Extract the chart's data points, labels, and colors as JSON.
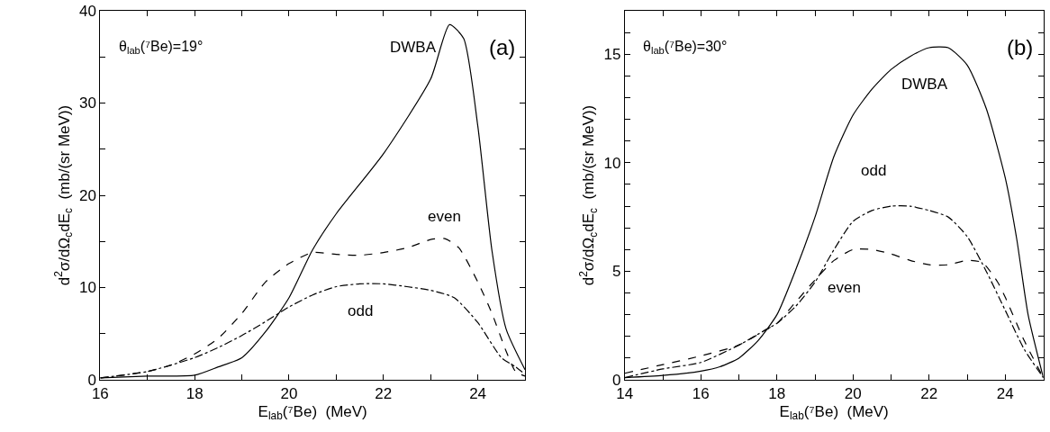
{
  "chart_data": [
    {
      "type": "line",
      "annotations": [
        "θ$_{lab}$(⁷Be)=19°",
        "(a)"
      ],
      "xlabel": "E$_{lab}$(⁷Be)  (MeV)",
      "ylabel": "d$^{2}$σ/dΩ$_{c}$dE$_{c}$  (mb/(sr MeV))",
      "xlim": [
        16,
        25
      ],
      "ylim": [
        0,
        40
      ],
      "xticks": [
        16,
        {
          "value": 17,
          "label": null
        },
        18,
        {
          "value": 19,
          "label": null
        },
        20,
        {
          "value": 21,
          "label": null
        },
        22,
        {
          "value": 23,
          "label": null
        },
        24
      ],
      "yticks": [
        0,
        {
          "value": 5,
          "label": null
        },
        10,
        {
          "value": 15,
          "label": null
        },
        20,
        {
          "value": 25,
          "label": null
        },
        30,
        {
          "value": 35,
          "label": null
        },
        40
      ],
      "grid": false,
      "legend": false,
      "marker": "none",
      "series": [
        {
          "name": "DWBA",
          "color": "#000000",
          "line_style": "solid",
          "x": [
            16,
            17,
            18,
            18.5,
            19,
            19.5,
            20,
            20.5,
            21,
            22,
            23,
            23.4,
            23.7,
            24,
            24.3,
            24.6,
            25
          ],
          "values": [
            0.2,
            0.4,
            0.5,
            1.4,
            2.4,
            5.2,
            8.9,
            14.1,
            18,
            24.5,
            32.6,
            38.5,
            37,
            27.5,
            14,
            5.5,
            1.1
          ]
        },
        {
          "name": "even",
          "color": "#000000",
          "line_style": "dashed",
          "x": [
            16,
            17,
            17.5,
            18,
            18.5,
            19,
            19.5,
            20,
            20.5,
            21,
            21.5,
            22,
            22.5,
            23,
            23.3,
            23.6,
            24,
            24.3,
            24.6,
            24.8,
            25
          ],
          "values": [
            0.2,
            0.9,
            1.6,
            2.8,
            4.5,
            7.2,
            10.6,
            12.6,
            13.8,
            13.6,
            13.5,
            13.8,
            14.3,
            15.2,
            15.3,
            14.3,
            10.6,
            7.2,
            3.1,
            0.9,
            0.4
          ]
        },
        {
          "name": "odd",
          "color": "#000000",
          "line_style": "dashdot",
          "x": [
            16,
            17,
            18,
            18.5,
            19,
            19.5,
            20,
            20.5,
            21,
            21.5,
            22,
            22.5,
            23,
            23.5,
            24,
            24.5,
            24.8,
            25
          ],
          "values": [
            0.2,
            0.9,
            2.4,
            3.5,
            4.8,
            6.3,
            7.9,
            9.2,
            10.1,
            10.4,
            10.4,
            10.1,
            9.7,
            8.9,
            6.2,
            2.4,
            1.4,
            0.6
          ]
        }
      ]
    },
    {
      "type": "line",
      "annotations": [
        "θ$_{lab}$(⁷Be)=30°",
        "(b)"
      ],
      "xlabel": "E$_{lab}$(⁷Be)  (MeV)",
      "ylabel": "d$^{2}$σ/dΩ$_{c}$dE$_{c}$  (mb/(sr MeV))",
      "xlim": [
        14,
        25
      ],
      "ylim": [
        0,
        17
      ],
      "xticks": [
        14,
        {
          "value": 15,
          "label": null
        },
        16,
        {
          "value": 17,
          "label": null
        },
        18,
        {
          "value": 19,
          "label": null
        },
        20,
        {
          "value": 21,
          "label": null
        },
        22,
        {
          "value": 23,
          "label": null
        },
        24
      ],
      "yticks": [
        0,
        {
          "value": 1,
          "label": null
        },
        {
          "value": 2,
          "label": null
        },
        {
          "value": 3,
          "label": null
        },
        {
          "value": 4,
          "label": null
        },
        5,
        {
          "value": 6,
          "label": null
        },
        {
          "value": 7,
          "label": null
        },
        {
          "value": 8,
          "label": null
        },
        {
          "value": 9,
          "label": null
        },
        10,
        {
          "value": 11,
          "label": null
        },
        {
          "value": 12,
          "label": null
        },
        {
          "value": 13,
          "label": null
        },
        {
          "value": 14,
          "label": null
        },
        15,
        {
          "value": 16,
          "label": null
        }
      ],
      "grid": false,
      "legend": false,
      "marker": "none",
      "series": [
        {
          "name": "DWBA",
          "color": "#000000",
          "line_style": "solid",
          "x": [
            14,
            15,
            16,
            16.5,
            17,
            17.5,
            18,
            18.5,
            19,
            19.5,
            20,
            20.5,
            21,
            21.5,
            22,
            22.5,
            23,
            23.5,
            24,
            24.3,
            24.6,
            25
          ],
          "values": [
            0.1,
            0.2,
            0.4,
            0.6,
            1.0,
            1.8,
            3.0,
            5.1,
            7.5,
            10.3,
            12.2,
            13.4,
            14.3,
            14.9,
            15.3,
            15.3,
            14.5,
            12.5,
            9.3,
            6.5,
            3.0,
            0.1
          ]
        },
        {
          "name": "odd",
          "color": "#000000",
          "line_style": "dashdot",
          "x": [
            14,
            15,
            16,
            17,
            17.7,
            18,
            18.5,
            19,
            19.5,
            20,
            20.5,
            21,
            21.5,
            22,
            22.5,
            23,
            23.5,
            24,
            24.5,
            25
          ],
          "values": [
            0.1,
            0.5,
            0.8,
            1.6,
            2.3,
            2.6,
            3.4,
            4.5,
            6.0,
            7.3,
            7.8,
            8.0,
            8.0,
            7.8,
            7.5,
            6.6,
            5.0,
            3.2,
            1.4,
            0.1
          ]
        },
        {
          "name": "even",
          "color": "#000000",
          "line_style": "dashed",
          "x": [
            14,
            15,
            16,
            17,
            17.7,
            18,
            18.5,
            19,
            19.5,
            20,
            20.5,
            21,
            21.5,
            22,
            22.5,
            23,
            23.4,
            23.8,
            24,
            24.5,
            25
          ],
          "values": [
            0.3,
            0.7,
            1.1,
            1.6,
            2.3,
            2.6,
            3.6,
            4.6,
            5.5,
            6.0,
            6.0,
            5.8,
            5.5,
            5.3,
            5.3,
            5.5,
            5.4,
            4.5,
            3.8,
            1.8,
            0.1
          ]
        }
      ]
    }
  ]
}
